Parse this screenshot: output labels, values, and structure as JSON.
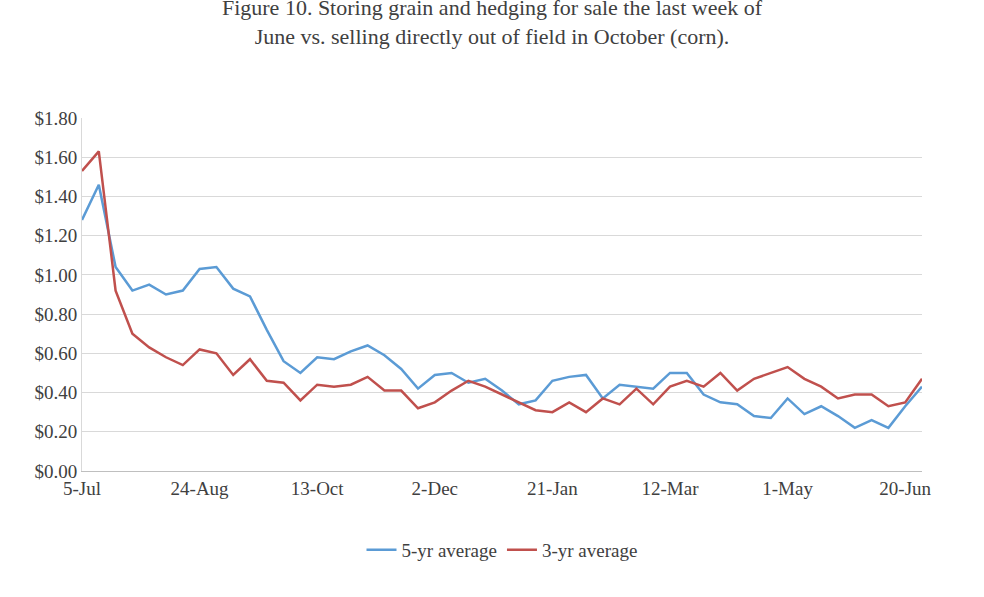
{
  "chart_data": {
    "type": "line",
    "title": "Figure 10. Storing grain and hedging for sale the last week of June vs. selling directly out of field in October (corn).",
    "categories": [
      "5-Jul",
      null,
      null,
      null,
      null,
      null,
      null,
      "24-Aug",
      null,
      null,
      null,
      null,
      null,
      null,
      "13-Oct",
      null,
      null,
      null,
      null,
      null,
      null,
      "2-Dec",
      null,
      null,
      null,
      null,
      null,
      null,
      "21-Jan",
      null,
      null,
      null,
      null,
      null,
      null,
      "12-Mar",
      null,
      null,
      null,
      null,
      null,
      null,
      "1-May",
      null,
      null,
      null,
      null,
      null,
      null,
      "20-Jun",
      null
    ],
    "series": [
      {
        "name": "5-yr average",
        "color": "#5b9bd5",
        "values": [
          1.28,
          1.46,
          1.04,
          0.92,
          0.95,
          0.9,
          0.92,
          1.03,
          1.04,
          0.93,
          0.89,
          0.72,
          0.56,
          0.5,
          0.58,
          0.57,
          0.61,
          0.64,
          0.59,
          0.52,
          0.42,
          0.49,
          0.5,
          0.45,
          0.47,
          0.41,
          0.34,
          0.36,
          0.46,
          0.48,
          0.49,
          0.37,
          0.44,
          0.43,
          0.42,
          0.5,
          0.5,
          0.39,
          0.35,
          0.34,
          0.28,
          0.27,
          0.37,
          0.29,
          0.33,
          0.28,
          0.22,
          0.26,
          0.22,
          0.33,
          0.43
        ]
      },
      {
        "name": "3-yr average",
        "color": "#c0504d",
        "values": [
          1.53,
          1.63,
          0.92,
          0.7,
          0.63,
          0.58,
          0.54,
          0.62,
          0.6,
          0.49,
          0.57,
          0.46,
          0.45,
          0.36,
          0.44,
          0.43,
          0.44,
          0.48,
          0.41,
          0.41,
          0.32,
          0.35,
          0.41,
          0.46,
          0.43,
          0.39,
          0.35,
          0.31,
          0.3,
          0.35,
          0.3,
          0.37,
          0.34,
          0.42,
          0.34,
          0.43,
          0.46,
          0.43,
          0.5,
          0.41,
          0.47,
          0.5,
          0.53,
          0.47,
          0.43,
          0.37,
          0.39,
          0.39,
          0.33,
          0.35,
          0.47
        ]
      }
    ],
    "ylim": [
      0,
      1.8
    ],
    "yticks": [
      {
        "value": 0,
        "label": "$0.00"
      },
      {
        "value": 0.2,
        "label": "$0.20"
      },
      {
        "value": 0.4,
        "label": "$0.40"
      },
      {
        "value": 0.6,
        "label": "$0.60"
      },
      {
        "value": 0.8,
        "label": "$0.80"
      },
      {
        "value": 1.0,
        "label": "$1.00"
      },
      {
        "value": 1.2,
        "label": "$1.20"
      },
      {
        "value": 1.4,
        "label": "$1.40"
      },
      {
        "value": 1.6,
        "label": "$1.60"
      },
      {
        "value": 1.8,
        "label": "$1.80"
      }
    ],
    "grid": true,
    "legend": "bottom"
  }
}
